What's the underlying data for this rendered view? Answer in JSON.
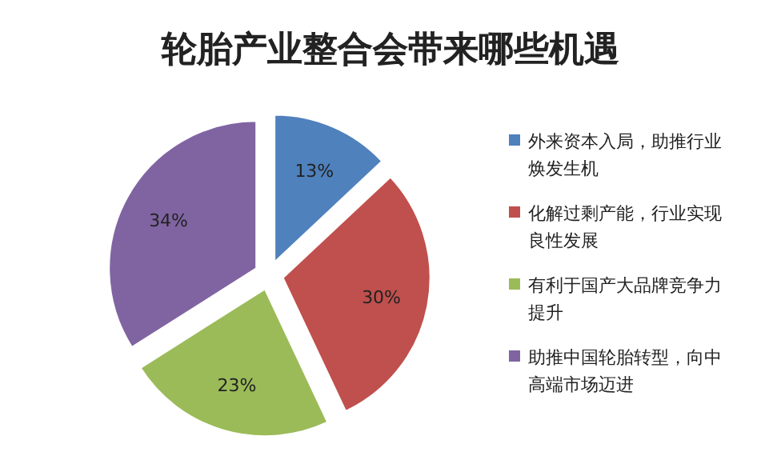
{
  "chart_data": {
    "type": "pie",
    "title": "轮胎产业整合会带来哪些机遇",
    "categories": [
      "外来资本入局，助推行业焕发生机",
      "化解过剩产能，行业实现良性发展",
      "有利于国产大品牌竞争力提升",
      "助推中国轮胎转型，向中高端市场迈进"
    ],
    "values": [
      13,
      30,
      23,
      34
    ],
    "colors": [
      "#4f81bd",
      "#c0504d",
      "#9bbb59",
      "#8064a2"
    ],
    "value_labels": [
      "13%",
      "30%",
      "23%",
      "34%"
    ],
    "legend": "right"
  }
}
